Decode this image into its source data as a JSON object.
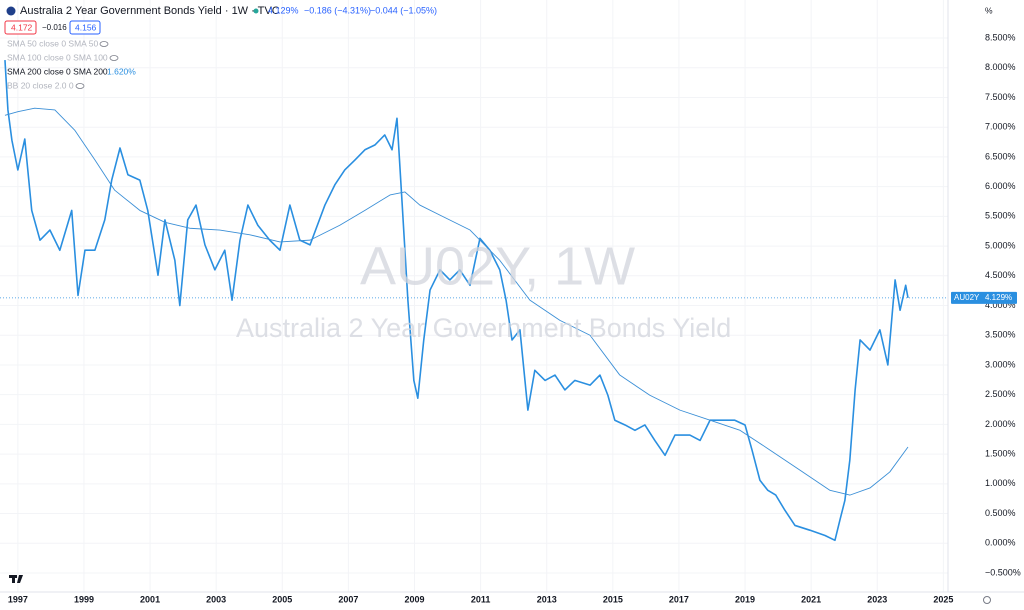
{
  "chart_data": {
    "type": "line",
    "title": "Australia 2 Year Government Bonds Yield · 1W · TVC",
    "quote": {
      "last": "4.129%",
      "change": "−0.186 (−4.31%)",
      "change_2": "−0.044 (−1.05%)"
    },
    "boxes": [
      "4.172",
      "−0.016",
      "4.156"
    ],
    "indicators": [
      "SMA 50 close 0 SMA 50",
      "SMA 100 close 0 SMA 100",
      "SMA 200 close 0 SMA 200",
      "BB 20 close 2.0 0"
    ],
    "watermark": {
      "symbol": "AU02Y, 1W",
      "description": "Australia 2 Year Government Bonds Yield"
    },
    "y_unit": "%",
    "xlim": [
      1996.46,
      2025.14
    ],
    "ylim": [
      -0.82,
      9.14
    ],
    "xticks": [
      1997,
      1999,
      2001,
      2003,
      2005,
      2007,
      2009,
      2011,
      2013,
      2015,
      2017,
      2019,
      2021,
      2023,
      2025
    ],
    "yticks": [
      {
        "value": -0.5,
        "label": "−0.500%"
      },
      {
        "value": 0,
        "label": "0.000%"
      },
      {
        "value": 0.5,
        "label": "0.500%"
      },
      {
        "value": 1,
        "label": "1.000%"
      },
      {
        "value": 1.5,
        "label": "1.500%"
      },
      {
        "value": 2,
        "label": "2.000%"
      },
      {
        "value": 2.5,
        "label": "2.500%"
      },
      {
        "value": 3,
        "label": "3.000%"
      },
      {
        "value": 3.5,
        "label": "3.500%"
      },
      {
        "value": 4,
        "label": "4.000%"
      },
      {
        "value": 4.5,
        "label": "4.500%"
      },
      {
        "value": 5,
        "label": "5.000%"
      },
      {
        "value": 5.5,
        "label": "5.500%"
      },
      {
        "value": 6,
        "label": "6.000%"
      },
      {
        "value": 6.5,
        "label": "6.500%"
      },
      {
        "value": 7,
        "label": "7.000%"
      },
      {
        "value": 7.5,
        "label": "7.500%"
      },
      {
        "value": 8,
        "label": "8.000%"
      },
      {
        "value": 8.5,
        "label": "8.500%"
      }
    ],
    "series": [
      {
        "name": "AU02Y",
        "color": "#2a8fe0",
        "width": 1.6,
        "x": [
          1996.61,
          1996.7,
          1996.82,
          1997.0,
          1997.21,
          1997.42,
          1997.67,
          1997.97,
          1998.27,
          1998.63,
          1998.82,
          1999.03,
          1999.33,
          1999.63,
          1999.84,
          2000.09,
          2000.33,
          2000.69,
          2000.93,
          2001.24,
          2001.45,
          2001.75,
          2001.9,
          2002.14,
          2002.39,
          2002.66,
          2002.96,
          2003.26,
          2003.48,
          2003.72,
          2003.96,
          2004.26,
          2004.62,
          2004.93,
          2005.23,
          2005.53,
          2005.84,
          2006.29,
          2006.59,
          2006.89,
          2007.2,
          2007.5,
          2007.8,
          2008.1,
          2008.32,
          2008.47,
          2008.62,
          2008.8,
          2008.98,
          2009.1,
          2009.28,
          2009.47,
          2009.77,
          2010.07,
          2010.37,
          2010.68,
          2010.98,
          2011.28,
          2011.58,
          2011.77,
          2011.95,
          2012.19,
          2012.43,
          2012.64,
          2012.95,
          2013.25,
          2013.55,
          2013.85,
          2014.31,
          2014.61,
          2014.85,
          2015.06,
          2015.37,
          2015.67,
          2015.97,
          2016.27,
          2016.58,
          2016.88,
          2017.33,
          2017.64,
          2017.94,
          2018.24,
          2018.69,
          2019.0,
          2019.21,
          2019.45,
          2019.69,
          2019.93,
          2020.2,
          2020.51,
          2020.96,
          2021.42,
          2021.72,
          2021.87,
          2022.02,
          2022.17,
          2022.33,
          2022.48,
          2022.78,
          2023.08,
          2023.32,
          2023.54,
          2023.69,
          2023.86,
          2023.93
        ],
        "values": [
          8.13,
          7.29,
          6.78,
          6.28,
          6.8,
          5.6,
          5.1,
          5.27,
          4.93,
          5.6,
          4.17,
          4.93,
          4.93,
          5.44,
          6.11,
          6.65,
          6.2,
          6.11,
          5.6,
          4.51,
          5.44,
          4.76,
          4.0,
          5.44,
          5.69,
          5.02,
          4.6,
          4.93,
          4.09,
          5.1,
          5.69,
          5.35,
          5.1,
          4.93,
          5.69,
          5.1,
          5.02,
          5.69,
          6.03,
          6.28,
          6.45,
          6.62,
          6.7,
          6.87,
          6.62,
          7.15,
          5.77,
          4.09,
          2.74,
          2.44,
          3.42,
          4.26,
          4.6,
          4.43,
          4.6,
          4.34,
          5.13,
          4.93,
          4.6,
          4.09,
          3.42,
          3.59,
          2.24,
          2.91,
          2.74,
          2.83,
          2.58,
          2.74,
          2.66,
          2.83,
          2.49,
          2.07,
          1.99,
          1.9,
          1.99,
          1.73,
          1.48,
          1.82,
          1.82,
          1.73,
          2.07,
          2.07,
          2.07,
          1.99,
          1.57,
          1.06,
          0.89,
          0.81,
          0.56,
          0.3,
          0.22,
          0.13,
          0.05,
          0.39,
          0.72,
          1.4,
          2.58,
          3.42,
          3.25,
          3.59,
          3.0,
          4.43,
          3.92,
          4.34,
          4.129
        ],
        "value_labels": [
          null,
          null,
          null,
          null,
          null,
          null,
          null,
          null,
          null,
          null,
          null,
          null,
          null,
          null,
          null,
          null,
          null,
          null,
          null,
          null,
          null,
          null,
          null,
          null,
          null,
          null,
          null,
          null,
          null,
          null,
          null,
          null,
          null,
          null,
          null,
          null,
          null,
          null,
          null,
          null,
          null,
          null,
          null,
          null,
          null,
          null,
          null,
          null,
          null,
          null,
          null,
          null,
          null,
          null,
          null,
          null,
          null,
          null,
          null,
          null,
          null,
          null,
          null,
          null,
          null,
          null,
          null,
          null,
          null,
          null,
          null,
          null,
          null,
          null,
          null,
          null,
          null,
          null,
          null,
          null,
          null,
          null,
          null,
          null,
          null,
          null,
          null,
          null,
          null,
          null,
          null,
          null,
          null,
          null,
          null,
          null,
          null,
          null,
          null,
          null,
          null,
          null,
          null,
          null,
          "4.129%"
        ]
      },
      {
        "name": "SMA 200",
        "color": "#3b8fd6",
        "width": 0.9,
        "x": [
          1996.61,
          1997.0,
          1997.51,
          1998.12,
          1998.72,
          1999.33,
          1999.93,
          2000.69,
          2001.45,
          2002.2,
          2003.11,
          2004.02,
          2004.93,
          2005.84,
          2006.74,
          2007.5,
          2008.26,
          2008.71,
          2009.16,
          2009.77,
          2010.68,
          2011.58,
          2012.49,
          2013.4,
          2014.31,
          2015.21,
          2016.12,
          2017.03,
          2017.94,
          2018.85,
          2019.75,
          2020.66,
          2021.57,
          2022.17,
          2022.78,
          2023.38,
          2023.93
        ],
        "values": [
          7.2,
          7.26,
          7.32,
          7.29,
          6.95,
          6.45,
          5.94,
          5.6,
          5.4,
          5.3,
          5.27,
          5.19,
          5.07,
          5.1,
          5.35,
          5.6,
          5.86,
          5.91,
          5.69,
          5.52,
          5.27,
          4.76,
          4.09,
          3.75,
          3.5,
          2.83,
          2.49,
          2.24,
          2.07,
          1.9,
          1.57,
          1.23,
          0.89,
          0.81,
          0.93,
          1.2,
          1.62
        ],
        "value_labels": [
          null,
          null,
          null,
          null,
          null,
          null,
          null,
          null,
          null,
          null,
          null,
          null,
          null,
          null,
          null,
          null,
          null,
          null,
          null,
          null,
          null,
          null,
          null,
          null,
          null,
          null,
          null,
          null,
          null,
          null,
          null,
          null,
          null,
          null,
          null,
          null,
          "1.620%"
        ]
      }
    ]
  }
}
